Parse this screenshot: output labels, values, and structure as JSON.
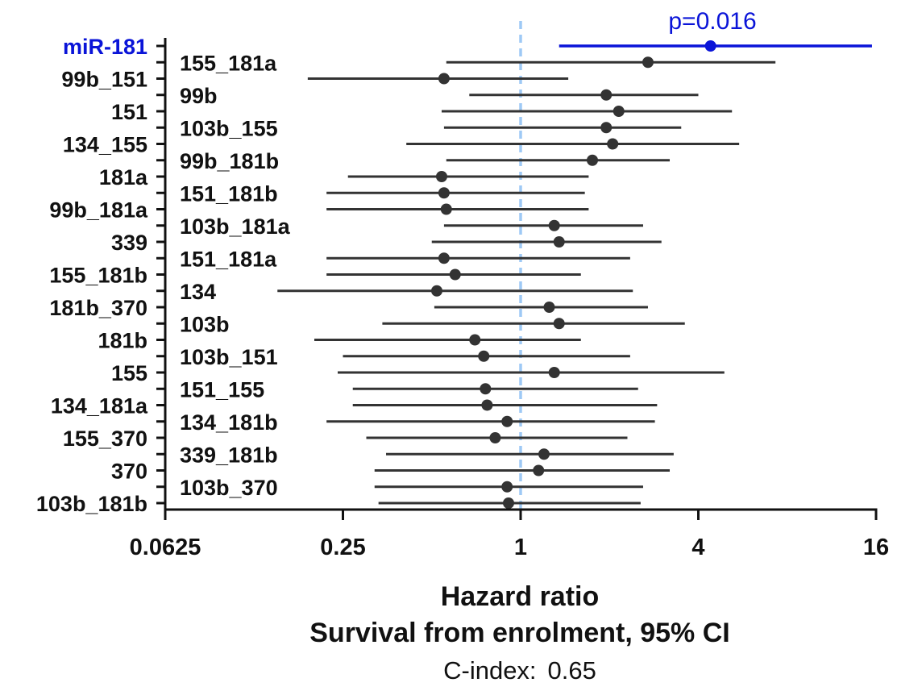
{
  "chart_data": {
    "type": "forest",
    "x_scale": "log2",
    "xlim": [
      0.0625,
      16
    ],
    "x_ticks": [
      "0.0625",
      "0.25",
      "1",
      "4",
      "16"
    ],
    "x_tick_values": [
      0.0625,
      0.25,
      1,
      4,
      16
    ],
    "reference_line": 1,
    "xlabel": "Hazard ratio",
    "subtitle": "Survival from enrolment, 95% CI",
    "footer": {
      "label": "C-index:",
      "value": "0.65"
    },
    "annotation": "p=0.016",
    "colors": {
      "highlight": "#0a14d8",
      "default": "#333333",
      "reference": "#9ec9f5",
      "axis": "#111111"
    },
    "rows": [
      {
        "label": "miR-181",
        "hr": 4.4,
        "lo": 1.35,
        "hi": 15.5,
        "highlight": true
      },
      {
        "label": "155_181a",
        "hr": 2.7,
        "lo": 0.56,
        "hi": 7.3
      },
      {
        "label": "99b_151",
        "hr": 0.55,
        "lo": 0.19,
        "hi": 1.45
      },
      {
        "label": "99b",
        "hr": 1.95,
        "lo": 0.67,
        "hi": 4.0
      },
      {
        "label": "151",
        "hr": 2.15,
        "lo": 0.54,
        "hi": 5.2
      },
      {
        "label": "103b_155",
        "hr": 1.95,
        "lo": 0.55,
        "hi": 3.5
      },
      {
        "label": "134_155",
        "hr": 2.05,
        "lo": 0.41,
        "hi": 5.5
      },
      {
        "label": "99b_181b",
        "hr": 1.75,
        "lo": 0.56,
        "hi": 3.2
      },
      {
        "label": "181a",
        "hr": 0.54,
        "lo": 0.26,
        "hi": 1.7
      },
      {
        "label": "151_181b",
        "hr": 0.55,
        "lo": 0.22,
        "hi": 1.65
      },
      {
        "label": "99b_181a",
        "hr": 0.56,
        "lo": 0.22,
        "hi": 1.7
      },
      {
        "label": "103b_181a",
        "hr": 1.3,
        "lo": 0.55,
        "hi": 2.6
      },
      {
        "label": "339",
        "hr": 1.35,
        "lo": 0.5,
        "hi": 3.0
      },
      {
        "label": "151_181a",
        "hr": 0.55,
        "lo": 0.22,
        "hi": 2.35
      },
      {
        "label": "155_181b",
        "hr": 0.6,
        "lo": 0.22,
        "hi": 1.6
      },
      {
        "label": "134",
        "hr": 0.52,
        "lo": 0.15,
        "hi": 2.4
      },
      {
        "label": "181b_370",
        "hr": 1.25,
        "lo": 0.51,
        "hi": 2.7
      },
      {
        "label": "103b",
        "hr": 1.35,
        "lo": 0.34,
        "hi": 3.6
      },
      {
        "label": "181b",
        "hr": 0.7,
        "lo": 0.2,
        "hi": 1.6
      },
      {
        "label": "103b_151",
        "hr": 0.75,
        "lo": 0.25,
        "hi": 2.35
      },
      {
        "label": "155",
        "hr": 1.3,
        "lo": 0.24,
        "hi": 4.9
      },
      {
        "label": "151_155",
        "hr": 0.76,
        "lo": 0.27,
        "hi": 2.5
      },
      {
        "label": "134_181a",
        "hr": 0.77,
        "lo": 0.27,
        "hi": 2.9
      },
      {
        "label": "134_181b",
        "hr": 0.9,
        "lo": 0.22,
        "hi": 2.85
      },
      {
        "label": "155_370",
        "hr": 0.82,
        "lo": 0.3,
        "hi": 2.3
      },
      {
        "label": "339_181b",
        "hr": 1.2,
        "lo": 0.35,
        "hi": 3.3
      },
      {
        "label": "370",
        "hr": 1.15,
        "lo": 0.32,
        "hi": 3.2
      },
      {
        "label": "103b_370",
        "hr": 0.9,
        "lo": 0.32,
        "hi": 2.6
      },
      {
        "label": "103b_181b",
        "hr": 0.91,
        "lo": 0.33,
        "hi": 2.55
      }
    ]
  }
}
